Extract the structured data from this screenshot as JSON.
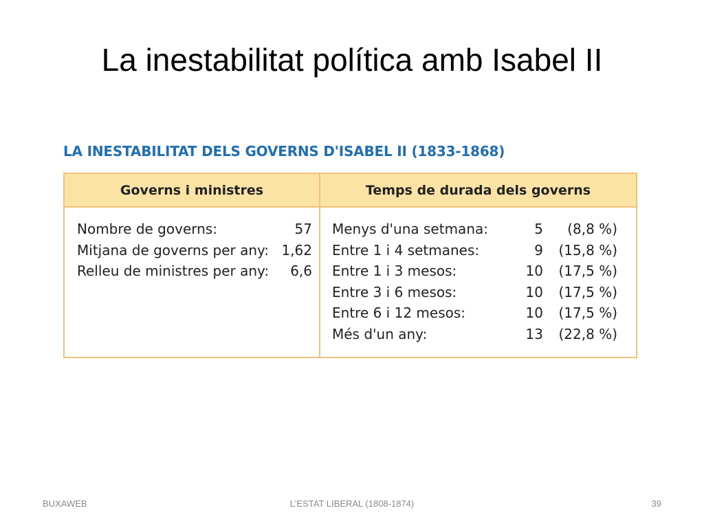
{
  "slide": {
    "title": "La inestabilitat política amb Isabel II"
  },
  "figure": {
    "caption": "LA INESTABILITAT DELS GOVERNS D'ISABEL II (1833-1868)",
    "left_column": {
      "header": "Governs i ministres",
      "rows": [
        {
          "label": "Nombre de governs:",
          "value": "57"
        },
        {
          "label": "Mitjana de governs per any:",
          "value": "1,62"
        },
        {
          "label": "Relleu de ministres per any:",
          "value": "6,6"
        }
      ]
    },
    "right_column": {
      "header": "Temps de durada dels governs",
      "rows": [
        {
          "label": "Menys d'una setmana:",
          "count": "5",
          "percent": "(8,8 %)"
        },
        {
          "label": "Entre 1 i 4 setmanes:",
          "count": "9",
          "percent": "(15,8 %)"
        },
        {
          "label": "Entre 1 i 3 mesos:",
          "count": "10",
          "percent": "(17,5 %)"
        },
        {
          "label": "Entre 3 i 6 mesos:",
          "count": "10",
          "percent": "(17,5 %)"
        },
        {
          "label": "Entre 6 i 12 mesos:",
          "count": "10",
          "percent": "(17,5 %)"
        },
        {
          "label": "Més d'un any:",
          "count": "13",
          "percent": "(22,8 %)"
        }
      ]
    }
  },
  "footer": {
    "left": "BUXAWEB",
    "center": "L'ESTAT LIBERAL (1808-1874)",
    "page_number": "39"
  },
  "colors": {
    "caption_blue": "#1f6fb2",
    "table_border": "#f0c27d",
    "header_fill": "#fbe3a6",
    "footer_gray": "#898989"
  }
}
